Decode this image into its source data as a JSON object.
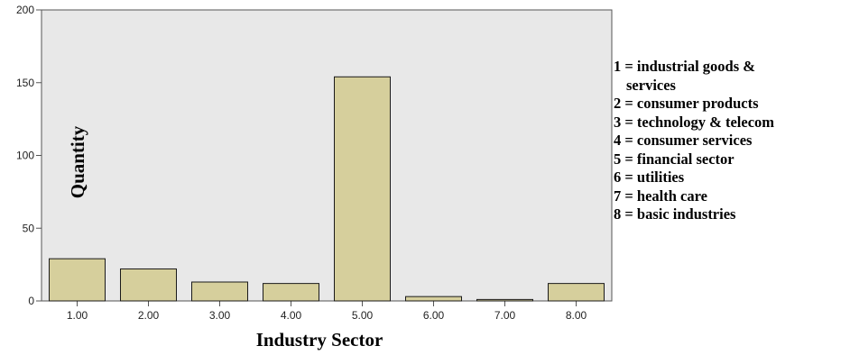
{
  "chart_data": {
    "type": "bar",
    "categories": [
      "1.00",
      "2.00",
      "3.00",
      "4.00",
      "5.00",
      "6.00",
      "7.00",
      "8.00"
    ],
    "values": [
      29,
      22,
      13,
      12,
      154,
      3,
      1,
      12
    ],
    "xlabel": "Industry Sector",
    "ylabel": "Quantity",
    "ylim": [
      0,
      200
    ],
    "yticks": [
      0,
      50,
      100,
      150,
      200
    ],
    "yticks_labels": [
      "0",
      "50",
      "100",
      "150",
      "200"
    ],
    "grid": false,
    "legend_placement": "right",
    "colors": {
      "bar_fill": "#d6cf9c",
      "bar_stroke": "#1a1a1a",
      "plot_bg": "#e8e8e8",
      "axis": "#555555"
    }
  },
  "legend": {
    "items": [
      [
        "1 = industrial goods &",
        "services"
      ],
      [
        "2 = consumer products"
      ],
      [
        "3 = technology & telecom"
      ],
      [
        "4 = consumer services"
      ],
      [
        "5 = financial sector"
      ],
      [
        "6 = utilities"
      ],
      [
        "7 = health care"
      ],
      [
        "8 = basic industries"
      ]
    ]
  }
}
